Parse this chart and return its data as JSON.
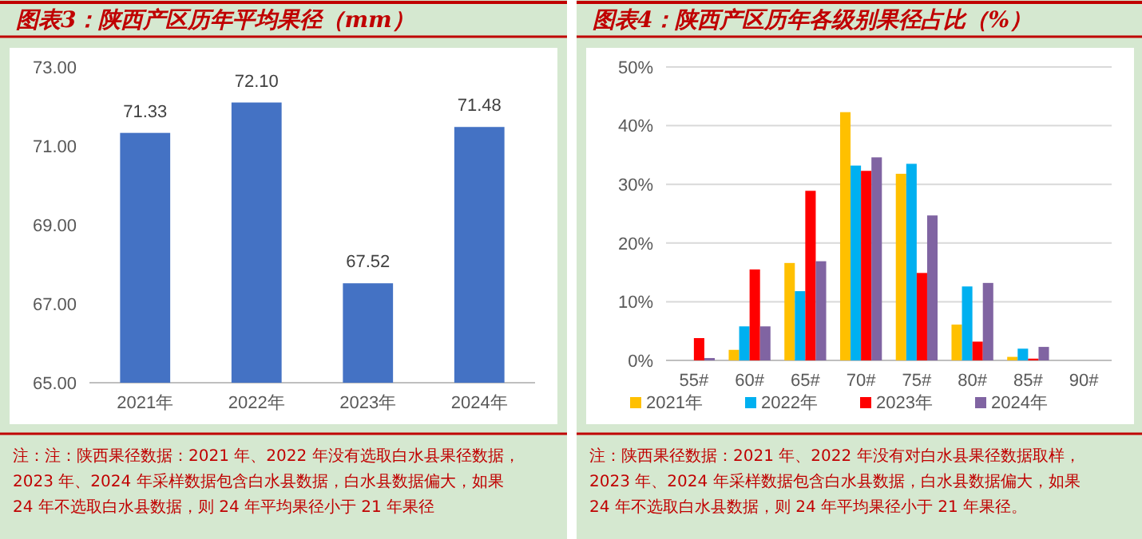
{
  "chart_data": [
    {
      "type": "bar",
      "title": "图表3：陕西产区历年平均果径（mm）",
      "categories": [
        "2021年",
        "2022年",
        "2023年",
        "2024年"
      ],
      "series": [
        {
          "color": "#4472c4",
          "values": [
            71.33,
            72.1,
            67.52,
            71.48
          ]
        }
      ],
      "value_labels": [
        "71.33",
        "72.10",
        "67.52",
        "71.48"
      ],
      "ylim": [
        65,
        73
      ],
      "yticks": [
        {
          "value": 65,
          "label": "65.00"
        },
        {
          "value": 67,
          "label": "67.00"
        },
        {
          "value": 69,
          "label": "69.00"
        },
        {
          "value": 71,
          "label": "71.00"
        },
        {
          "value": 73,
          "label": "73.00"
        }
      ],
      "grid": false,
      "annotations": [
        "注：注：陕西果径数据：2021 年、2022 年没有选取白水县果径数据，2023 年、2024 年采样数据包含白水县数据，白水县数据偏大，如果 24 年不选取白水县数据，则 24 年平均果径小于 21 年果径"
      ]
    },
    {
      "type": "bar",
      "title": "图表4：陕西产区历年各级别果径占比（%）",
      "categories": [
        "55#",
        "60#",
        "65#",
        "70#",
        "75#",
        "80#",
        "85#",
        "90#"
      ],
      "series": [
        {
          "name": "2021年",
          "color": "#ffc000",
          "values": [
            0,
            1.8,
            16.6,
            42.3,
            31.8,
            6.1,
            0.6,
            0
          ]
        },
        {
          "name": "2022年",
          "color": "#00b0f0",
          "values": [
            0,
            5.8,
            11.8,
            33.2,
            33.5,
            12.6,
            2.0,
            0
          ]
        },
        {
          "name": "2023年",
          "color": "#ff0000",
          "values": [
            3.8,
            15.5,
            28.9,
            32.3,
            14.9,
            3.2,
            0.3,
            0
          ]
        },
        {
          "name": "2024年",
          "color": "#8064a2",
          "values": [
            0.4,
            5.8,
            16.9,
            34.6,
            24.7,
            13.2,
            2.3,
            0
          ]
        }
      ],
      "ylim": [
        0,
        50
      ],
      "yticks": [
        {
          "value": 0,
          "label": "0%"
        },
        {
          "value": 10,
          "label": "10%"
        },
        {
          "value": 20,
          "label": "20%"
        },
        {
          "value": 30,
          "label": "30%"
        },
        {
          "value": 40,
          "label": "40%"
        },
        {
          "value": 50,
          "label": "50%"
        }
      ],
      "grid": "y",
      "legend": "bottom",
      "annotations": [
        "注：陕西果径数据：2021 年、2022 年没有对白水县果径数据取样，2023 年、2024 年采样数据包含白水县数据，白水县数据偏大，如果 24 年不选取白水县数据，则 24 年平均果径小于 21 年果径。"
      ]
    }
  ]
}
